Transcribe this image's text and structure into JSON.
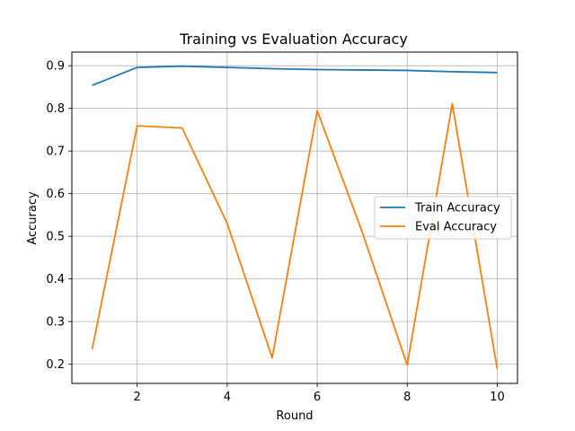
{
  "chart_data": {
    "type": "line",
    "title": "Training vs Evaluation Accuracy",
    "xlabel": "Round",
    "ylabel": "Accuracy",
    "x": [
      1,
      2,
      3,
      4,
      5,
      6,
      7,
      8,
      9,
      10
    ],
    "xlim": [
      0.55,
      10.45
    ],
    "ylim": [
      0.155,
      0.932
    ],
    "xticks": [
      2,
      4,
      6,
      8,
      10
    ],
    "yticks": [
      0.2,
      0.3,
      0.4,
      0.5,
      0.6,
      0.7,
      0.8,
      0.9
    ],
    "xtick_labels": [
      "2",
      "4",
      "6",
      "8",
      "10"
    ],
    "ytick_labels": [
      "0.2",
      "0.3",
      "0.4",
      "0.5",
      "0.6",
      "0.7",
      "0.8",
      "0.9"
    ],
    "grid": true,
    "legend_position": "center-right",
    "series": [
      {
        "name": "Train Accuracy",
        "color": "#1f77b4",
        "values": [
          0.854,
          0.896,
          0.899,
          0.896,
          0.893,
          0.891,
          0.89,
          0.889,
          0.886,
          0.884
        ]
      },
      {
        "name": "Eval Accuracy",
        "color": "#ff7f0e",
        "values": [
          0.235,
          0.759,
          0.754,
          0.53,
          0.215,
          0.795,
          0.51,
          0.198,
          0.811,
          0.189
        ]
      }
    ]
  }
}
